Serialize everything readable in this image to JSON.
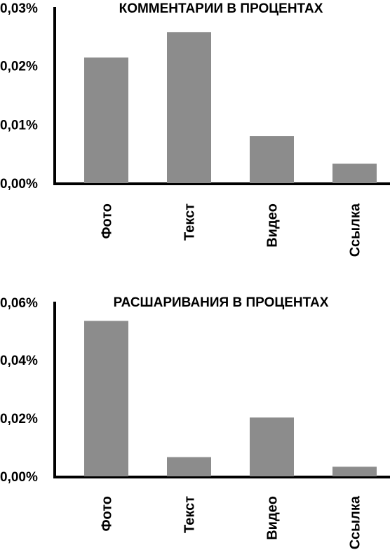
{
  "chart_data": [
    {
      "type": "bar",
      "title": "КОММЕНТАРИИ В ПРОЦЕНТАХ",
      "categories": [
        "Фото",
        "Текст",
        "Видео",
        "Ссылка"
      ],
      "values": [
        0.0214,
        0.0257,
        0.008,
        0.0033
      ],
      "unit": "%",
      "ylim": [
        0,
        0.03
      ],
      "yticks": [
        0,
        0.01,
        0.02,
        0.03
      ],
      "ytick_labels": [
        "0,00%",
        "0,01%",
        "0,02%",
        "0,03%"
      ],
      "xlabel": "",
      "ylabel": "",
      "grid": false,
      "bar_color": "#8c8c8c"
    },
    {
      "type": "bar",
      "title": "РАСШАРИВАНИЯ В ПРОЦЕНТАХ",
      "categories": [
        "Фото",
        "Текст",
        "Видео",
        "Ссылка"
      ],
      "values": [
        0.0534,
        0.0066,
        0.0202,
        0.0033
      ],
      "unit": "%",
      "ylim": [
        0,
        0.06
      ],
      "yticks": [
        0,
        0.02,
        0.04,
        0.06
      ],
      "ytick_labels": [
        "0,00%",
        "0,02%",
        "0,04%",
        "0,06%"
      ],
      "xlabel": "",
      "ylabel": "",
      "grid": false,
      "bar_color": "#8c8c8c"
    }
  ]
}
